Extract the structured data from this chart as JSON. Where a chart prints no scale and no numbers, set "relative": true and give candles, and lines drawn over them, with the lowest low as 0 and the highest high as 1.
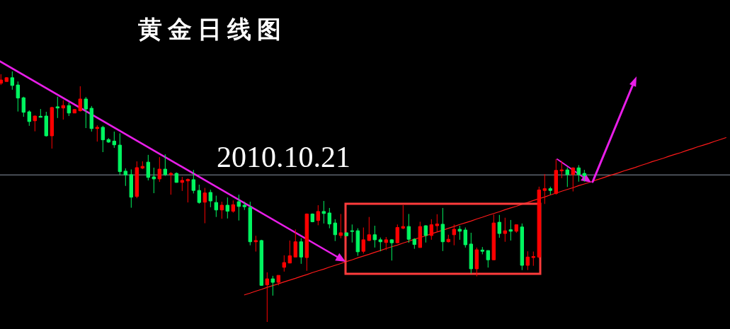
{
  "chart_data": {
    "type": "candlestick",
    "title": "黄金日线图",
    "annotations": [
      "2010.10.21"
    ],
    "categories": [
      null,
      null,
      null,
      null,
      null,
      null,
      null,
      null,
      null,
      null,
      null,
      null,
      null,
      null,
      null,
      null,
      null,
      null,
      null,
      null,
      null,
      null,
      null,
      null,
      null,
      null,
      null,
      null,
      null,
      null,
      null,
      null,
      null,
      null,
      null,
      null,
      null,
      null,
      null,
      null,
      null,
      null,
      null,
      null,
      null,
      null,
      null,
      null,
      null,
      null,
      null,
      null,
      null,
      null,
      null,
      null,
      null,
      null,
      null,
      null,
      null,
      null,
      null,
      null,
      null,
      null,
      null,
      null,
      null,
      null,
      null,
      null,
      null,
      null,
      null,
      null,
      null,
      null,
      null,
      null,
      null,
      null,
      null,
      null,
      null,
      null,
      null,
      null,
      null,
      null,
      null,
      null,
      null,
      null,
      null,
      null,
      null,
      null,
      null,
      null,
      null,
      null,
      null,
      null,
      null,
      null,
      null,
      null,
      null,
      null,
      null,
      null,
      null,
      null,
      null,
      null,
      null,
      null,
      null,
      null,
      null,
      null,
      null,
      null,
      null,
      null,
      null,
      null,
      null
    ],
    "relative": true,
    "ohlc": [
      [
        0.953,
        0.989,
        0.946,
        0.966
      ],
      [
        0.96,
        0.977,
        0.96,
        0.975
      ],
      [
        0.975,
        1.0,
        0.927,
        0.944
      ],
      [
        0.946,
        0.96,
        0.84,
        0.894
      ],
      [
        0.895,
        0.899,
        0.819,
        0.837
      ],
      [
        0.839,
        0.845,
        0.783,
        0.8
      ],
      [
        0.803,
        0.824,
        0.761,
        0.822
      ],
      [
        0.821,
        0.85,
        0.817,
        0.817
      ],
      [
        0.822,
        0.839,
        0.74,
        0.743
      ],
      [
        0.743,
        0.859,
        0.692,
        0.856
      ],
      [
        0.859,
        0.899,
        0.814,
        0.854
      ],
      [
        0.854,
        0.885,
        0.808,
        0.864
      ],
      [
        0.864,
        0.876,
        0.822,
        0.834
      ],
      [
        0.834,
        0.85,
        0.834,
        0.848
      ],
      [
        0.843,
        0.941,
        0.84,
        0.89
      ],
      [
        0.89,
        0.898,
        0.774,
        0.85
      ],
      [
        0.853,
        0.862,
        0.76,
        0.772
      ],
      [
        0.772,
        0.785,
        0.72,
        0.777
      ],
      [
        0.777,
        0.783,
        0.678,
        0.727
      ],
      [
        0.728,
        0.734,
        0.715,
        0.718
      ],
      [
        0.722,
        0.76,
        0.695,
        0.707
      ],
      [
        0.706,
        0.753,
        0.587,
        0.6
      ],
      [
        0.602,
        0.613,
        0.543,
        0.587
      ],
      [
        0.588,
        0.609,
        0.456,
        0.498
      ],
      [
        0.501,
        0.641,
        0.494,
        0.616
      ],
      [
        0.614,
        0.641,
        0.61,
        0.621
      ],
      [
        0.638,
        0.667,
        0.565,
        0.577
      ],
      [
        0.579,
        0.616,
        0.514,
        0.571
      ],
      [
        0.571,
        0.658,
        0.559,
        0.61
      ],
      [
        0.61,
        0.669,
        0.583,
        0.588
      ],
      [
        0.588,
        0.598,
        0.508,
        0.593
      ],
      [
        0.593,
        0.597,
        0.556,
        0.557
      ],
      [
        0.557,
        0.579,
        0.523,
        0.565
      ],
      [
        0.563,
        0.573,
        0.477,
        0.569
      ],
      [
        0.568,
        0.607,
        0.513,
        0.525
      ],
      [
        0.525,
        0.548,
        0.472,
        0.477
      ],
      [
        0.478,
        0.535,
        0.394,
        0.515
      ],
      [
        0.517,
        0.528,
        0.458,
        0.483
      ],
      [
        0.477,
        0.504,
        0.419,
        0.447
      ],
      [
        0.447,
        0.48,
        0.412,
        0.466
      ],
      [
        0.466,
        0.497,
        0.413,
        0.442
      ],
      [
        0.442,
        0.485,
        0.436,
        0.468
      ],
      [
        0.48,
        0.508,
        0.405,
        0.461
      ],
      [
        0.466,
        0.48,
        0.447,
        0.46
      ],
      [
        0.457,
        0.48,
        0.306,
        0.32
      ],
      [
        0.32,
        0.344,
        0.281,
        0.325
      ],
      [
        0.325,
        0.328,
        0.144,
        0.146
      ],
      [
        0.148,
        0.198,
        0.0,
        0.172
      ],
      [
        0.172,
        0.184,
        0.105,
        0.158
      ],
      [
        0.158,
        0.186,
        0.146,
        0.186
      ],
      [
        0.218,
        0.266,
        0.201,
        0.237
      ],
      [
        0.235,
        0.325,
        0.235,
        0.264
      ],
      [
        0.259,
        0.369,
        0.259,
        0.32
      ],
      [
        0.32,
        0.334,
        0.232,
        0.259
      ],
      [
        0.257,
        0.433,
        0.204,
        0.431
      ],
      [
        0.431,
        0.433,
        0.398,
        0.4
      ],
      [
        0.405,
        0.466,
        0.386,
        0.441
      ],
      [
        0.441,
        0.483,
        0.393,
        0.433
      ],
      [
        0.435,
        0.455,
        0.374,
        0.391
      ],
      [
        0.395,
        0.41,
        0.323,
        0.348
      ],
      [
        0.345,
        0.431,
        0.334,
        0.356
      ],
      [
        0.356,
        0.356,
        0.344,
        0.344
      ],
      [
        0.364,
        0.389,
        0.317,
        0.362
      ],
      [
        0.364,
        0.374,
        0.264,
        0.28
      ],
      [
        0.282,
        0.377,
        0.273,
        0.328
      ],
      [
        0.325,
        0.419,
        0.323,
        0.348
      ],
      [
        0.348,
        0.384,
        0.297,
        0.328
      ],
      [
        0.328,
        0.337,
        0.282,
        0.32
      ],
      [
        0.317,
        0.339,
        0.287,
        0.328
      ],
      [
        0.328,
        0.33,
        0.245,
        0.316
      ],
      [
        0.316,
        0.389,
        0.314,
        0.377
      ],
      [
        0.374,
        0.466,
        0.37,
        0.381
      ],
      [
        0.381,
        0.431,
        0.316,
        0.33
      ],
      [
        0.33,
        0.334,
        0.292,
        0.309
      ],
      [
        0.297,
        0.4,
        0.297,
        0.381
      ],
      [
        0.384,
        0.386,
        0.317,
        0.345
      ],
      [
        0.345,
        0.41,
        0.328,
        0.388
      ],
      [
        0.384,
        0.43,
        0.362,
        0.391
      ],
      [
        0.39,
        0.455,
        0.283,
        0.32
      ],
      [
        0.32,
        0.348,
        0.317,
        0.33
      ],
      [
        0.348,
        0.389,
        0.306,
        0.37
      ],
      [
        0.37,
        0.384,
        0.328,
        0.362
      ],
      [
        0.367,
        0.377,
        0.297,
        0.308
      ],
      [
        0.311,
        0.356,
        0.193,
        0.212
      ],
      [
        0.212,
        0.297,
        0.182,
        0.288
      ],
      [
        0.287,
        0.299,
        0.27,
        0.282
      ],
      [
        0.285,
        0.285,
        0.217,
        0.248
      ],
      [
        0.248,
        0.429,
        0.248,
        0.395
      ],
      [
        0.398,
        0.427,
        0.336,
        0.353
      ],
      [
        0.353,
        0.416,
        0.32,
        0.364
      ],
      [
        0.368,
        0.407,
        0.325,
        0.362
      ],
      [
        0.362,
        0.388,
        0.356,
        0.388
      ],
      [
        0.379,
        0.393,
        0.207,
        0.226
      ],
      [
        0.226,
        0.282,
        0.207,
        0.259
      ],
      [
        0.257,
        0.281,
        0.224,
        0.261
      ],
      [
        0.259,
        0.54,
        0.254,
        0.527
      ],
      [
        0.525,
        0.59,
        0.471,
        0.532
      ],
      [
        0.532,
        0.54,
        0.508,
        0.525
      ],
      [
        0.513,
        0.65,
        0.508,
        0.605
      ],
      [
        0.603,
        0.643,
        0.574,
        0.607
      ],
      [
        0.607,
        0.617,
        0.539,
        0.588
      ],
      [
        0.588,
        0.617,
        0.521,
        0.615
      ],
      [
        0.615,
        0.626,
        0.56,
        0.588
      ],
      [
        0.593,
        0.607,
        0.56,
        0.584
      ],
      null,
      null,
      null,
      null,
      null,
      null,
      null,
      null,
      null,
      null,
      null,
      null,
      null,
      null,
      null,
      null,
      null,
      null,
      null,
      null,
      null,
      null,
      null,
      null,
      null
    ],
    "colors": [
      "#ff0000",
      "#ff0000",
      "#00f560",
      "#00f560",
      "#00f560",
      "#00f560",
      "#ff0000",
      "#00f560",
      "#00f560",
      "#ff0000",
      "#00f560",
      "#ff0000",
      "#00f560",
      "#ff0000",
      "#ff0000",
      "#00f560",
      "#00f560",
      "#ff0000",
      "#00f560",
      "#00f560",
      "#00f560",
      "#00f560",
      "#00f560",
      "#00f560",
      "#ff0000",
      "#ff0000",
      "#00f560",
      "#00f560",
      "#ff0000",
      "#00f560",
      "#ff0000",
      "#00f560",
      "#ff0000",
      "#ff0000",
      "#00f560",
      "#00f560",
      "#ff0000",
      "#00f560",
      "#00f560",
      "#ff0000",
      "#00f560",
      "#ff0000",
      "#00f560",
      "#00f560",
      "#00f560",
      "#ff0000",
      "#00f560",
      "#ff0000",
      "#00f560",
      "#ff0000",
      "#ff0000",
      "#ff0000",
      "#ff0000",
      "#00f560",
      "#ff0000",
      "#00f560",
      "#ff0000",
      "#00f560",
      "#00f560",
      "#00f560",
      "#ff0000",
      "#00f560",
      "#00f560",
      "#00f560",
      "#ff0000",
      "#ff0000",
      "#00f560",
      "#00f560",
      "#ff0000",
      "#00f560",
      "#ff0000",
      "#ff0000",
      "#00f560",
      "#00f560",
      "#ff0000",
      "#00f560",
      "#ff0000",
      "#ff0000",
      "#00f560",
      "#ff0000",
      "#ff0000",
      "#00f560",
      "#00f560",
      "#00f560",
      "#ff0000",
      "#00f560",
      "#00f560",
      "#ff0000",
      "#00f560",
      "#ff0000",
      "#00f560",
      "#ff0000",
      "#00f560",
      "#ff0000",
      "#ff0000",
      "#ff0000",
      "#ff0000",
      "#00f560",
      "#ff0000",
      "#ff0000",
      "#00f560",
      "#ff0000",
      "#00f560",
      "#00f560",
      null,
      null,
      null,
      null,
      null,
      null,
      null,
      null,
      null,
      null,
      null,
      null,
      null,
      null,
      null,
      null,
      null,
      null,
      null,
      null,
      null,
      null,
      null,
      null,
      null
    ],
    "series": [
      {
        "type": "line",
        "color": "#ff1a1a",
        "values": [
          null,
          null,
          null,
          null,
          null,
          null,
          null,
          null,
          null,
          null,
          null,
          null,
          null,
          null,
          null,
          null,
          null,
          null,
          null,
          null,
          null,
          null,
          null,
          null,
          null,
          null,
          null,
          null,
          null,
          null,
          null,
          null,
          null,
          null,
          null,
          null,
          null,
          null,
          null,
          null,
          null,
          null,
          null,
          0.108,
          0.115,
          0.123,
          0.13,
          0.138,
          0.145,
          0.152,
          0.16,
          0.167,
          0.174,
          0.182,
          0.189,
          0.197,
          0.204,
          0.211,
          0.219,
          0.226,
          0.233,
          0.241,
          0.248,
          0.256,
          0.263,
          0.27,
          0.278,
          0.285,
          0.293,
          0.3,
          0.307,
          0.315,
          0.322,
          0.33,
          0.337,
          0.344,
          0.352,
          0.359,
          0.366,
          0.374,
          0.381,
          0.389,
          0.396,
          0.403,
          0.411,
          0.418,
          0.426,
          0.433,
          0.44,
          0.448,
          0.455,
          0.462,
          0.47,
          0.477,
          0.485,
          0.492,
          0.499,
          0.507,
          0.514,
          0.522,
          0.529,
          0.536,
          0.544,
          0.551,
          0.558,
          0.566,
          0.573,
          0.581,
          0.588,
          0.595,
          0.603,
          0.61,
          0.617,
          0.625,
          0.632,
          0.64,
          0.647,
          0.654,
          0.662,
          0.669,
          0.676,
          0.684,
          0.691,
          0.699,
          0.706,
          0.713,
          0.721,
          0.728,
          0.736
        ]
      }
    ],
    "ref_lines": [
      {
        "axis": "y",
        "value": 0.587,
        "color": "#8c96a5"
      }
    ]
  }
}
